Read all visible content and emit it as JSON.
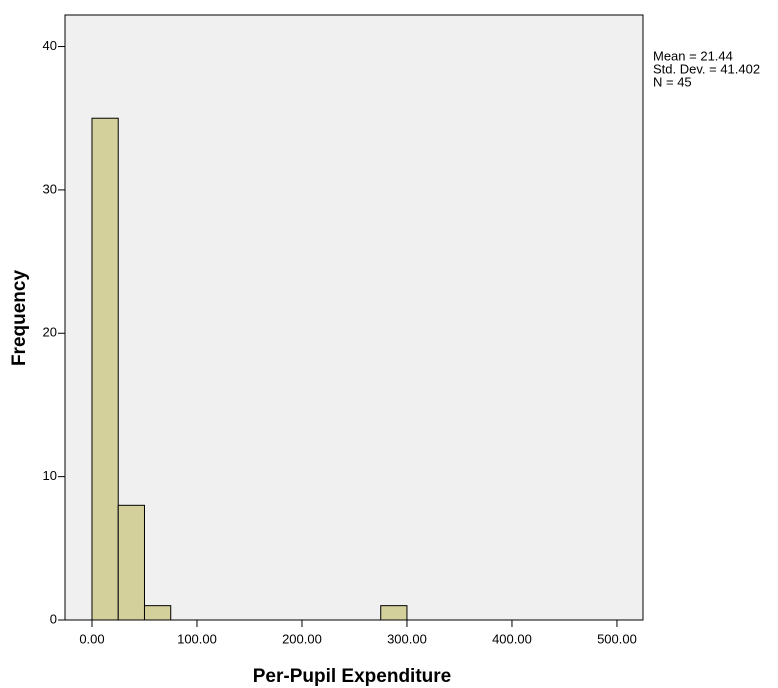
{
  "chart_data": {
    "type": "histogram",
    "xlabel": "Per-Pupil Expenditure",
    "ylabel": "Frequency",
    "bins": [
      0,
      25,
      50,
      75,
      100,
      125,
      150,
      175,
      200,
      225,
      250,
      275,
      300
    ],
    "counts": [
      35,
      8,
      1,
      0,
      0,
      0,
      0,
      0,
      0,
      0,
      0,
      1
    ],
    "color": "#d4d09c",
    "xlim": [
      -25.7,
      524.8
    ],
    "ylim": [
      0,
      42.2
    ],
    "xticks": [
      {
        "value": 0,
        "label": "0.00"
      },
      {
        "value": 100,
        "label": "100.00"
      },
      {
        "value": 200,
        "label": "200.00"
      },
      {
        "value": 300,
        "label": "300.00"
      },
      {
        "value": 400,
        "label": "400.00"
      },
      {
        "value": 500,
        "label": "500.00"
      }
    ],
    "yticks": [
      0,
      10,
      20,
      30,
      40
    ],
    "stats": [
      "Mean = 21.44",
      "Std. Dev. = 41.402",
      "N = 45"
    ]
  }
}
